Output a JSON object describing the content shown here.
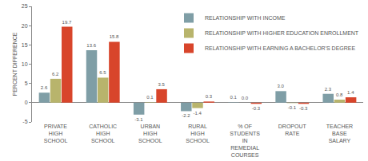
{
  "chart_data": {
    "type": "bar",
    "y_label": "PERCENT DIFFERENCE",
    "categories": [
      "PRIVATE HIGH SCHOOL",
      "CATHOLIC HIGH SCHOOL",
      "URBAN HIGH SCHOOL",
      "RURAL HIGH SCHOOL",
      "% OF STUDENTS IN REMEDIAL COURSES",
      "DROPOUT RATE",
      "TEACHER BASE SALARY"
    ],
    "series": [
      {
        "name": "RELATIONSHIP WITH INCOME",
        "color": "#7f9ea6",
        "values": [
          2.6,
          13.6,
          -3.1,
          -2.2,
          0.1,
          3.0,
          2.3
        ],
        "value_labels": [
          "2.6",
          "13.6",
          "-3.1",
          "-2.2",
          "0.1",
          "3.0",
          "2.3"
        ]
      },
      {
        "name": "RELATIONSHIP WITH HIGHER EDUCATION ENROLLMENT",
        "color": "#b8b46c",
        "values": [
          6.2,
          6.5,
          0.1,
          -1.4,
          0.0,
          -0.1,
          0.8
        ],
        "value_labels": [
          "6.2",
          "6.5",
          "0.1",
          "-1.4",
          "0.0",
          "-0.1",
          "0.8"
        ]
      },
      {
        "name": "RELATIONSHIP WITH EARNING A BACHELOR'S DEGREE",
        "color": "#d8452b",
        "values": [
          19.7,
          15.8,
          3.5,
          0.3,
          -0.3,
          -0.3,
          1.4
        ],
        "value_labels": [
          "19.7",
          "15.8",
          "3.5",
          "0.3",
          "-0.3",
          "-0.3",
          "1.4"
        ]
      }
    ],
    "ylim": [
      -5,
      25
    ],
    "yticks": [
      -5,
      0,
      5,
      10,
      15,
      20,
      25
    ],
    "grid": false,
    "legend": "top right",
    "data_labels": true
  }
}
